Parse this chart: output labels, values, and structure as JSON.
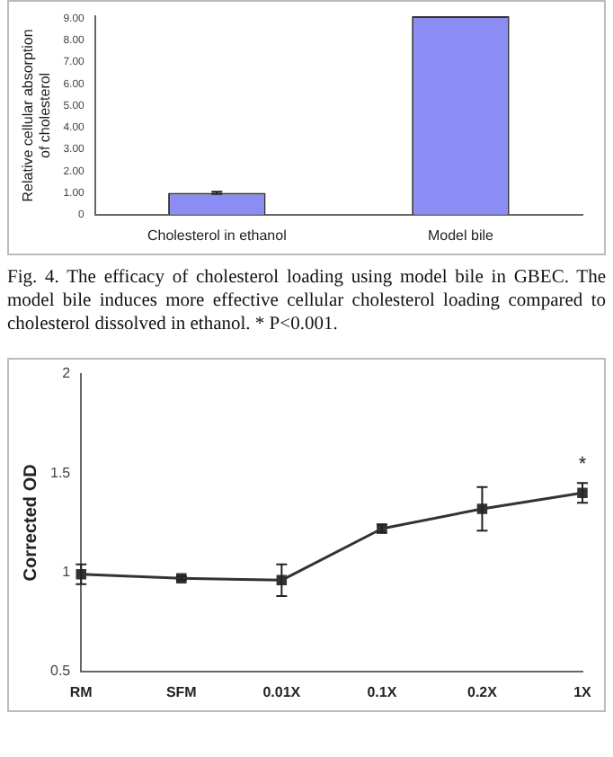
{
  "chart_data": [
    {
      "type": "bar",
      "ylabel": "Relative cellular absorption of cholesterol",
      "categories": [
        "Cholesterol in ethanol",
        "Model bile"
      ],
      "values": [
        1.0,
        9.1
      ],
      "errors": [
        0.05,
        null
      ],
      "color": "#8c8cf5",
      "ylim": [
        0,
        9.1
      ],
      "yticks": [
        0,
        {
          "value": 1,
          "label": "1.00"
        },
        {
          "value": 2,
          "label": "2.00"
        },
        {
          "value": 3,
          "label": "3.00"
        },
        {
          "value": 4,
          "label": "4.00"
        },
        {
          "value": 5,
          "label": "5.00"
        },
        {
          "value": 6,
          "label": "6.00"
        },
        {
          "value": 7,
          "label": "7.00"
        },
        {
          "value": 8,
          "label": "8.00"
        },
        {
          "value": 9,
          "label": "9.00"
        }
      ],
      "grid": false,
      "legend": false,
      "annotations": [
        "Fig. 4. The efficacy of cholesterol loading using model bile in GBEC. The model bile induces more effective cellular cholesterol loading compared to cholesterol dissolved in ethanol. * P<0.001."
      ]
    },
    {
      "type": "line",
      "ylabel": "Corrected OD",
      "categories": [
        "RM",
        "SFM",
        "0.01X",
        "0.1X",
        "0.2X",
        "1X"
      ],
      "values": [
        0.99,
        0.97,
        0.96,
        1.22,
        1.32,
        1.4
      ],
      "errors": [
        0.05,
        0.01,
        0.08,
        0.02,
        0.11,
        0.05
      ],
      "color": "#333333",
      "marker": "square",
      "line_style": "solid",
      "ylim": [
        0.5,
        2
      ],
      "yticks": [
        0.5,
        1,
        1.5,
        2
      ],
      "grid": false,
      "legend": false,
      "annotations": [
        "*"
      ]
    }
  ]
}
